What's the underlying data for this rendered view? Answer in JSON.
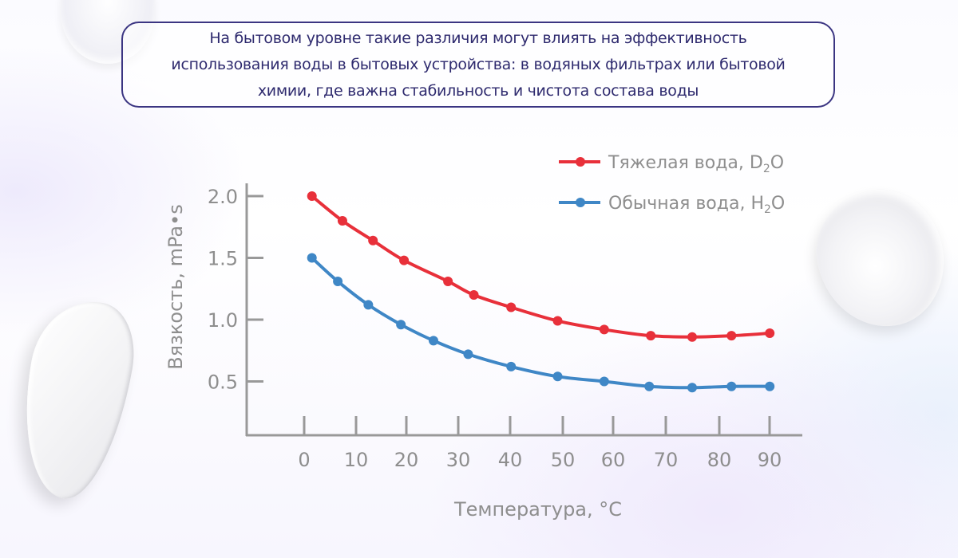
{
  "callout": {
    "text": "На бытовом уровне такие различия могут влиять на эффективность\nиспользования воды в бытовых устройства: в водяных фильтрах или бытовой\nхимии, где важна стабильность и чистота состава воды",
    "border_color": "#3b3582",
    "text_color": "#2e2a6e"
  },
  "legend": {
    "items": [
      {
        "label": "Тяжелая вода, D",
        "sub": "2",
        "tail": "O",
        "color": "#e8303a"
      },
      {
        "label": "Обычная вода, H",
        "sub": "2",
        "tail": "O",
        "color": "#3f87c6"
      }
    ]
  },
  "axes": {
    "x_title": "Температура, °C",
    "y_title": "Вязкость, mPa•s",
    "x_ticks": [
      "0",
      "10",
      "20",
      "30",
      "40",
      "50",
      "60",
      "70",
      "80",
      "90"
    ],
    "y_ticks": [
      "2.0",
      "1.5",
      "1.0",
      "0.5"
    ]
  },
  "chart_data": {
    "type": "line",
    "title": "",
    "xlabel": "Температура, °C",
    "ylabel": "Вязкость, mPa•s",
    "xlim": [
      -12,
      96
    ],
    "ylim": [
      0.3,
      2.1
    ],
    "x_ticks": [
      0,
      10,
      20,
      30,
      40,
      50,
      60,
      70,
      80,
      90
    ],
    "y_ticks": [
      0.5,
      1.0,
      1.5,
      2.0
    ],
    "grid": false,
    "legend_position": "top-right",
    "series": [
      {
        "name": "Тяжелая вода, D2O",
        "color": "#e8303a",
        "x": [
          1.5,
          7.4,
          13.3,
          19.3,
          27.8,
          32.8,
          40,
          49,
          58,
          67,
          75,
          82.6,
          90
        ],
        "values": [
          2.0,
          1.8,
          1.64,
          1.48,
          1.31,
          1.2,
          1.1,
          0.99,
          0.92,
          0.87,
          0.86,
          0.87,
          0.89
        ]
      },
      {
        "name": "Обычная вода, H2O",
        "color": "#3f87c6",
        "x": [
          1.5,
          6.5,
          12.4,
          18.7,
          25.0,
          31.7,
          40,
          49,
          58,
          66.7,
          75,
          82.6,
          90
        ],
        "values": [
          1.5,
          1.31,
          1.12,
          0.96,
          0.83,
          0.72,
          0.62,
          0.54,
          0.5,
          0.46,
          0.45,
          0.46,
          0.46
        ]
      }
    ]
  }
}
